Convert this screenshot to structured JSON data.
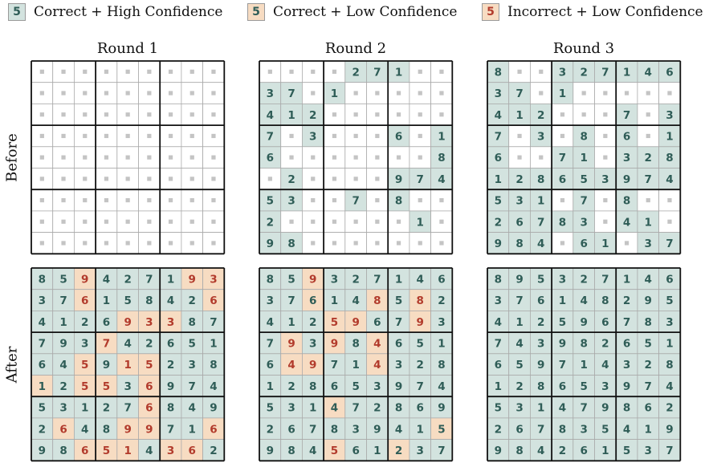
{
  "legend": [
    {
      "digit": "5",
      "label": "Correct + High Confidence",
      "fill": "#d3e3df",
      "text": "#2f5d57"
    },
    {
      "digit": "5",
      "label": "Correct + Low Confidence",
      "fill": "#f7dcc2",
      "text": "#2f5d57"
    },
    {
      "digit": "5",
      "label": "Incorrect + Low Confidence",
      "fill": "#f7dcc2",
      "text": "#b23b2c"
    }
  ],
  "rounds": [
    "Round 1",
    "Round 2",
    "Round 3"
  ],
  "rows": [
    "Before",
    "After"
  ],
  "colors": {
    "correct_high_fill": "#d3e3df",
    "correct_low_fill": "#f7dcc2",
    "empty_fill": "#ffffff",
    "correct_text": "#2f5d57",
    "incorrect_text": "#b23b2c",
    "empty_marker": "#c4c4c4",
    "thin_line": "#aaaaaa",
    "thick_line": "#111111"
  },
  "legend_codes": "'.' = empty cell; digit = Correct + High Confidence; '*digit' = Correct + Low Confidence; '!digit' = Incorrect + Low Confidence",
  "boards": {
    "before": [
      [
        ". . . . . . . . .",
        ". . . . . . . . .",
        ". . . . . . . . .",
        ". . . . . . . . .",
        ". . . . . . . . .",
        ". . . . . . . . .",
        ". . . . . . . . .",
        ". . . . . . . . .",
        ". . . . . . . . ."
      ],
      [
        ". . . . 2 7 1 . .",
        "3 7 . 1 . . . . .",
        "4 1 2 . . . . . .",
        "7 . 3 . . . 6 . 1",
        "6 . . . . . . . 8",
        ". 2 . . . . 9 7 4",
        "5 3 . . 7 . 8 . .",
        "2 . . . . . . 1 .",
        "9 8 . . . . . . ."
      ],
      [
        "8 . . 3 2 7 1 4 6",
        "3 7 . 1 . . . . .",
        "4 1 2 . . . 7 . 3",
        "7 . 3 . 8 . 6 . 1",
        "6 . . 7 1 . 3 2 8",
        "1 2 8 6 5 3 9 7 4",
        "5 3 1 . 7 . 8 . .",
        "2 6 7 8 3 . 4 1 .",
        "9 8 4 . 6 1 . 3 7"
      ]
    ],
    "after": [
      [
        "8 5 !9 4 2 7 1 !9 !3",
        "3 7 !6 1 5 8 4 2 !6",
        "4 1 2 6 !9 !3 !3 8 7",
        "7 9 3 !7 4 2 6 5 1",
        "6 4 !5 9 !1 !5 2 3 8",
        "*1 2 !5 !5 3 !6 9 7 4",
        "5 3 1 2 7 !6 8 4 9",
        "2 !6 4 8 !9 !9 7 1 !6",
        "9 8 !6 !5 !1 4 !3 !6 2"
      ],
      [
        "8 5 !9 3 2 7 1 4 6",
        "3 7 *6 1 4 !8 5 !8 2",
        "4 1 2 !5 !9 6 7 !9 3",
        "7 !9 3 !9 8 !4 6 5 1",
        "6 !4 !9 7 1 !4 3 2 8",
        "1 2 8 6 5 3 9 7 4",
        "5 3 1 *4 7 2 8 6 9",
        "2 6 7 8 3 9 4 1 *5",
        "9 8 4 !5 6 1 *2 3 7"
      ],
      [
        "8 9 5 3 2 7 1 4 6",
        "3 7 6 1 4 8 2 9 5",
        "4 1 2 5 9 6 7 8 3",
        "7 4 3 9 8 2 6 5 1",
        "6 5 9 7 1 4 3 2 8",
        "1 2 8 6 5 3 9 7 4",
        "5 3 1 4 7 9 8 6 2",
        "2 6 7 8 3 5 4 1 9",
        "9 8 4 2 6 1 5 3 7"
      ]
    ]
  }
}
